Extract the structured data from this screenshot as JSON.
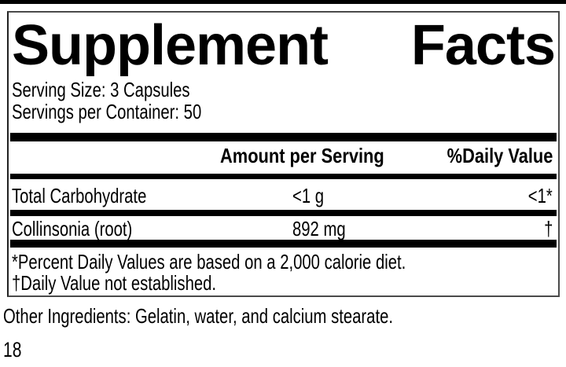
{
  "page": {
    "other_ingredients": "Other Ingredients: Gelatin, water, and calcium stearate.",
    "page_number": "18",
    "colors": {
      "text": "#000000",
      "bars": "#000000",
      "background": "#ffffff",
      "panel_border": "#4a4a4a"
    }
  },
  "panel": {
    "title_word1": "Supplement",
    "title_word2": "Facts",
    "serving_size": "Serving Size: 3 Capsules",
    "servings_per_container": "Servings per Container: 50",
    "table": {
      "amount_header": "Amount per Serving",
      "dv_header": "%Daily Value",
      "rows": [
        {
          "name": "Total Carbohydrate",
          "amount": "<1 g",
          "daily_value": "<1*"
        },
        {
          "name": "Collinsonia (root)",
          "amount": "892 mg",
          "daily_value": "†"
        }
      ]
    },
    "footnotes": [
      "*Percent Daily Values are based on a 2,000 calorie diet.",
      "†Daily Value not established."
    ]
  }
}
